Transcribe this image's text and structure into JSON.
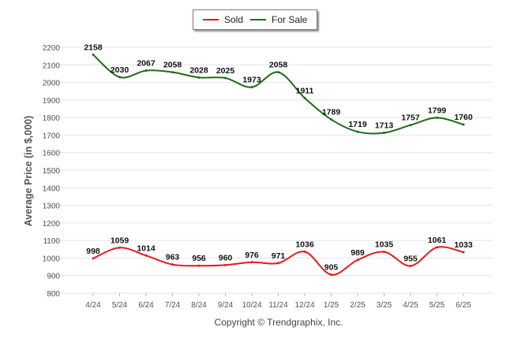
{
  "chart_data": {
    "type": "line",
    "categories": [
      "4/24",
      "5/24",
      "6/24",
      "7/24",
      "8/24",
      "9/24",
      "10/24",
      "11/24",
      "12/24",
      "1/25",
      "2/25",
      "3/25",
      "4/25",
      "5/25",
      "6/25"
    ],
    "series": [
      {
        "name": "Sold",
        "color": "#e8191d",
        "values": [
          998,
          1059,
          1014,
          963,
          956,
          960,
          976,
          971,
          1036,
          905,
          989,
          1035,
          955,
          1061,
          1033
        ]
      },
      {
        "name": "For Sale",
        "color": "#1f6b17",
        "values": [
          2158,
          2030,
          2067,
          2058,
          2028,
          2025,
          1973,
          2058,
          1911,
          1789,
          1719,
          1713,
          1757,
          1799,
          1760
        ]
      }
    ],
    "xlabel": "",
    "ylabel": "Average Price (in $,000)",
    "ylim": [
      800,
      2200
    ],
    "yticks": [
      800,
      900,
      1000,
      1100,
      1200,
      1300,
      1400,
      1500,
      1600,
      1700,
      1800,
      1900,
      2000,
      2100,
      2200
    ],
    "grid": true,
    "legend_position": "top-center"
  },
  "footer": {
    "copyright": "Copyright © Trendgraphix, Inc."
  }
}
